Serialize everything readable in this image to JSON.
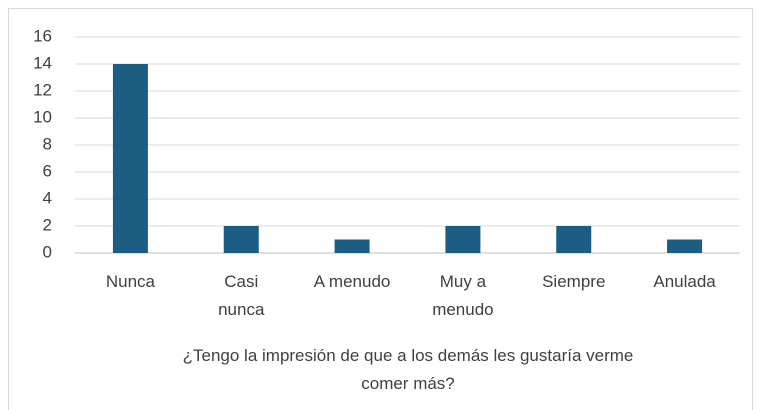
{
  "chart_data": {
    "type": "bar",
    "title": "¿Tengo la impresión de que a  los demás les gustaría verme\ncomer más?",
    "categories": [
      "Nunca",
      "Casi\nnunca",
      "A menudo",
      "Muy a\nmenudo",
      "Siempre",
      "Anulada"
    ],
    "values": [
      14,
      2,
      1,
      2,
      2,
      1
    ],
    "color": "#1b5e82",
    "ylim": [
      0,
      16
    ],
    "yticks": [
      0,
      2,
      4,
      6,
      8,
      10,
      12,
      14,
      16
    ],
    "grid": true
  }
}
